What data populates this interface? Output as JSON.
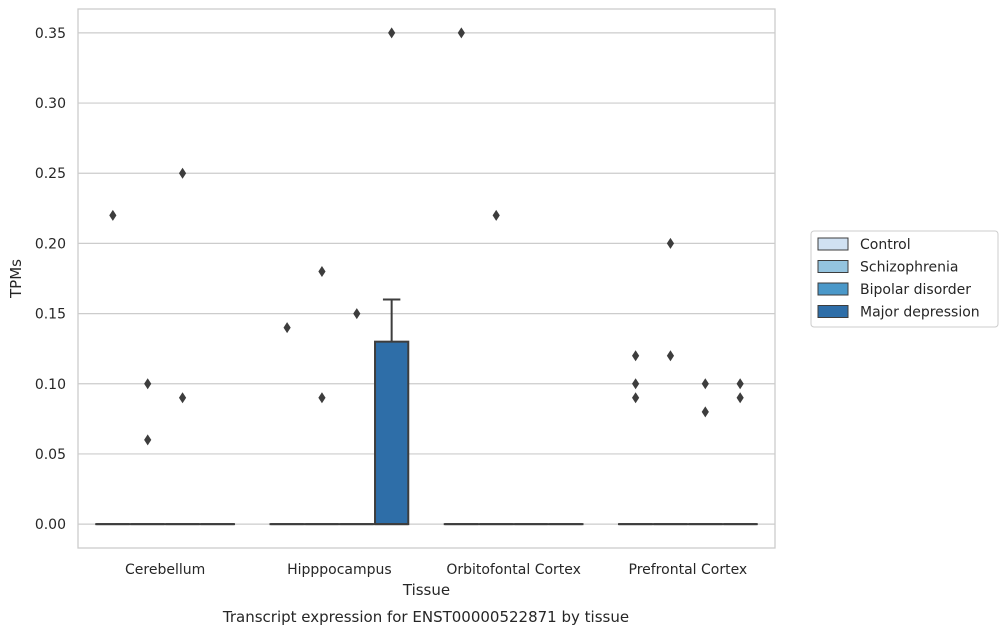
{
  "chart_data": {
    "type": "box",
    "caption": "Transcript expression for ENST00000522871 by tissue",
    "xlabel": "Tissue",
    "ylabel": "TPMs",
    "ylim": [
      -0.017,
      0.367
    ],
    "yticks": [
      0.0,
      0.05,
      0.1,
      0.15,
      0.2,
      0.25,
      0.3,
      0.35
    ],
    "ytick_labels": [
      "0.00",
      "0.05",
      "0.10",
      "0.15",
      "0.20",
      "0.25",
      "0.30",
      "0.35"
    ],
    "grid": true,
    "legend_position": "right",
    "categories": [
      "Cerebellum",
      "Hipppocampus",
      "Orbitofontal Cortex",
      "Prefrontal Cortex"
    ],
    "series": [
      {
        "name": "Control",
        "color": "#d0e1f2",
        "boxes": [
          {
            "q1": 0,
            "median": 0,
            "q3": 0,
            "whisker_low": 0,
            "whisker_high": 0,
            "outliers": [
              0.22
            ]
          },
          {
            "q1": 0,
            "median": 0,
            "q3": 0,
            "whisker_low": 0,
            "whisker_high": 0,
            "outliers": [
              0.14
            ]
          },
          {
            "q1": 0,
            "median": 0,
            "q3": 0,
            "whisker_low": 0,
            "whisker_high": 0,
            "outliers": [
              0.35
            ]
          },
          {
            "q1": 0,
            "median": 0,
            "q3": 0,
            "whisker_low": 0,
            "whisker_high": 0,
            "outliers": [
              0.12,
              0.1,
              0.09
            ]
          }
        ]
      },
      {
        "name": "Schizophrenia",
        "color": "#94c4df",
        "boxes": [
          {
            "q1": 0,
            "median": 0,
            "q3": 0,
            "whisker_low": 0,
            "whisker_high": 0,
            "outliers": [
              0.1,
              0.06
            ]
          },
          {
            "q1": 0,
            "median": 0,
            "q3": 0,
            "whisker_low": 0,
            "whisker_high": 0,
            "outliers": [
              0.18,
              0.09
            ]
          },
          {
            "q1": 0,
            "median": 0,
            "q3": 0,
            "whisker_low": 0,
            "whisker_high": 0,
            "outliers": [
              0.22
            ]
          },
          {
            "q1": 0,
            "median": 0,
            "q3": 0,
            "whisker_low": 0,
            "whisker_high": 0,
            "outliers": [
              0.2,
              0.12
            ]
          }
        ]
      },
      {
        "name": "Bipolar disorder",
        "color": "#4a98c9",
        "boxes": [
          {
            "q1": 0,
            "median": 0,
            "q3": 0,
            "whisker_low": 0,
            "whisker_high": 0,
            "outliers": [
              0.25,
              0.09
            ]
          },
          {
            "q1": 0,
            "median": 0,
            "q3": 0,
            "whisker_low": 0,
            "whisker_high": 0,
            "outliers": [
              0.15
            ]
          },
          {
            "q1": 0,
            "median": 0,
            "q3": 0,
            "whisker_low": 0,
            "whisker_high": 0,
            "outliers": []
          },
          {
            "q1": 0,
            "median": 0,
            "q3": 0,
            "whisker_low": 0,
            "whisker_high": 0,
            "outliers": [
              0.1,
              0.08
            ]
          }
        ]
      },
      {
        "name": "Major depression",
        "color": "#2e6ea8",
        "boxes": [
          {
            "q1": 0,
            "median": 0,
            "q3": 0,
            "whisker_low": 0,
            "whisker_high": 0,
            "outliers": []
          },
          {
            "q1": 0,
            "median": 0,
            "q3": 0.13,
            "whisker_low": 0,
            "whisker_high": 0.16,
            "outliers": [
              0.35
            ]
          },
          {
            "q1": 0,
            "median": 0,
            "q3": 0,
            "whisker_low": 0,
            "whisker_high": 0,
            "outliers": []
          },
          {
            "q1": 0,
            "median": 0,
            "q3": 0,
            "whisker_low": 0,
            "whisker_high": 0,
            "outliers": [
              0.1,
              0.09
            ]
          }
        ]
      }
    ]
  }
}
